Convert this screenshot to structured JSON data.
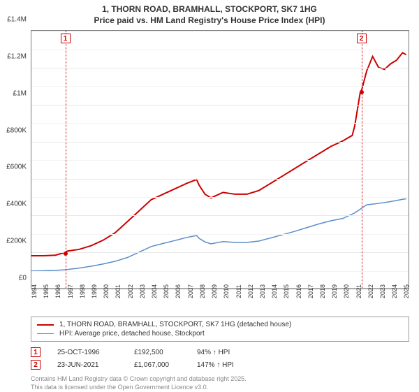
{
  "title": {
    "line1": "1, THORN ROAD, BRAMHALL, STOCKPORT, SK7 1HG",
    "line2": "Price paid vs. HM Land Registry's House Price Index (HPI)"
  },
  "chart": {
    "type": "line",
    "background_color": "#ffffff",
    "grid_color": "#e8e8e8",
    "border_color": "#777777",
    "x_years": [
      1994,
      1995,
      1996,
      1997,
      1998,
      1999,
      2000,
      2001,
      2002,
      2003,
      2004,
      2005,
      2006,
      2007,
      2008,
      2009,
      2010,
      2011,
      2012,
      2013,
      2014,
      2015,
      2016,
      2017,
      2018,
      2019,
      2020,
      2021,
      2022,
      2023,
      2024,
      2025
    ],
    "x_min": 1994,
    "x_max": 2025.5,
    "y_min": 0,
    "y_max": 1400000,
    "y_ticks": [
      0,
      200000,
      400000,
      600000,
      800000,
      1000000,
      1200000,
      1400000
    ],
    "y_tick_labels": [
      "£0",
      "£200K",
      "£400K",
      "£600K",
      "£800K",
      "£1M",
      "£1.2M",
      "£1.4M"
    ],
    "y_minor_step": 100000,
    "label_fontsize": 10,
    "series": [
      {
        "name": "price_paid",
        "label": "1, THORN ROAD, BRAMHALL, STOCKPORT, SK7 1HG (detached house)",
        "color": "#cc0000",
        "line_width": 2,
        "data": [
          [
            1994,
            175000
          ],
          [
            1995,
            175000
          ],
          [
            1996,
            178000
          ],
          [
            1996.8,
            192500
          ],
          [
            1997,
            200000
          ],
          [
            1998,
            210000
          ],
          [
            1999,
            230000
          ],
          [
            2000,
            260000
          ],
          [
            2001,
            300000
          ],
          [
            2002,
            360000
          ],
          [
            2003,
            420000
          ],
          [
            2004,
            480000
          ],
          [
            2005,
            510000
          ],
          [
            2006,
            540000
          ],
          [
            2007,
            570000
          ],
          [
            2007.8,
            590000
          ],
          [
            2008,
            560000
          ],
          [
            2008.5,
            510000
          ],
          [
            2009,
            490000
          ],
          [
            2010,
            520000
          ],
          [
            2011,
            510000
          ],
          [
            2012,
            510000
          ],
          [
            2013,
            530000
          ],
          [
            2014,
            570000
          ],
          [
            2015,
            610000
          ],
          [
            2016,
            650000
          ],
          [
            2017,
            690000
          ],
          [
            2018,
            730000
          ],
          [
            2019,
            770000
          ],
          [
            2020,
            800000
          ],
          [
            2020.8,
            830000
          ],
          [
            2021,
            880000
          ],
          [
            2021.47,
            1067000
          ],
          [
            2021.6,
            1080000
          ],
          [
            2022,
            1180000
          ],
          [
            2022.5,
            1260000
          ],
          [
            2023,
            1200000
          ],
          [
            2023.5,
            1190000
          ],
          [
            2024,
            1220000
          ],
          [
            2024.5,
            1240000
          ],
          [
            2025,
            1280000
          ],
          [
            2025.3,
            1270000
          ]
        ]
      },
      {
        "name": "hpi",
        "label": "HPI: Average price, detached house, Stockport",
        "color": "#5b8ec9",
        "line_width": 1.5,
        "data": [
          [
            1994,
            92000
          ],
          [
            1995,
            93000
          ],
          [
            1996,
            95000
          ],
          [
            1997,
            100000
          ],
          [
            1998,
            108000
          ],
          [
            1999,
            118000
          ],
          [
            2000,
            130000
          ],
          [
            2001,
            145000
          ],
          [
            2002,
            165000
          ],
          [
            2003,
            195000
          ],
          [
            2004,
            225000
          ],
          [
            2005,
            242000
          ],
          [
            2006,
            258000
          ],
          [
            2007,
            275000
          ],
          [
            2007.8,
            285000
          ],
          [
            2008,
            270000
          ],
          [
            2008.5,
            250000
          ],
          [
            2009,
            240000
          ],
          [
            2010,
            252000
          ],
          [
            2011,
            248000
          ],
          [
            2012,
            248000
          ],
          [
            2013,
            255000
          ],
          [
            2014,
            272000
          ],
          [
            2015,
            290000
          ],
          [
            2016,
            308000
          ],
          [
            2017,
            328000
          ],
          [
            2018,
            348000
          ],
          [
            2019,
            365000
          ],
          [
            2020,
            378000
          ],
          [
            2021,
            408000
          ],
          [
            2022,
            452000
          ],
          [
            2023,
            460000
          ],
          [
            2024,
            470000
          ],
          [
            2025,
            482000
          ],
          [
            2025.3,
            485000
          ]
        ]
      }
    ],
    "transactions": [
      {
        "idx": "1",
        "x": 1996.82,
        "date": "25-OCT-1996",
        "price": "£192,500",
        "pct": "94% ↑ HPI",
        "dot_color": "#cc0000"
      },
      {
        "idx": "2",
        "x": 2021.47,
        "date": "23-JUN-2021",
        "price": "£1,067,000",
        "pct": "147% ↑ HPI",
        "dot_color": "#cc0000"
      }
    ]
  },
  "legend": {
    "series1": "1, THORN ROAD, BRAMHALL, STOCKPORT, SK7 1HG (detached house)",
    "series2": "HPI: Average price, detached house, Stockport"
  },
  "footer": {
    "line1": "Contains HM Land Registry data © Crown copyright and database right 2025.",
    "line2": "This data is licensed under the Open Government Licence v3.0."
  }
}
